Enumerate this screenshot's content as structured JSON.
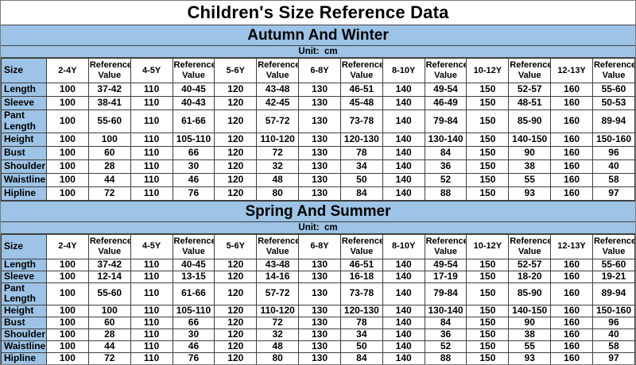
{
  "title": "Children's Size Reference Data",
  "unit_label": "Unit:  cm",
  "columns": [
    "Size",
    "2-4Y",
    "Reference Value",
    "4-5Y",
    "Reference Value",
    "5-6Y",
    "Reference Value",
    "6-8Y",
    "Reference Value",
    "8-10Y",
    "Reference Value",
    "10-12Y",
    "Reference Value",
    "12-13Y",
    "Reference Value"
  ],
  "chart_data": [
    {
      "type": "table",
      "heading": "Autumn And Winter",
      "unit": "cm",
      "rows": [
        {
          "label": "Length",
          "values": [
            "100",
            "37-42",
            "110",
            "40-45",
            "120",
            "43-48",
            "130",
            "46-51",
            "140",
            "49-54",
            "150",
            "52-57",
            "160",
            "55-60"
          ]
        },
        {
          "label": "Sleeve",
          "values": [
            "100",
            "38-41",
            "110",
            "40-43",
            "120",
            "42-45",
            "130",
            "45-48",
            "140",
            "46-49",
            "150",
            "48-51",
            "160",
            "50-53"
          ]
        },
        {
          "label": "Pant Length",
          "values": [
            "100",
            "55-60",
            "110",
            "61-66",
            "120",
            "57-72",
            "130",
            "73-78",
            "140",
            "79-84",
            "150",
            "85-90",
            "160",
            "89-94"
          ]
        },
        {
          "label": "Height",
          "values": [
            "100",
            "100",
            "110",
            "105-110",
            "120",
            "110-120",
            "130",
            "120-130",
            "140",
            "130-140",
            "150",
            "140-150",
            "160",
            "150-160"
          ]
        },
        {
          "label": "Bust",
          "values": [
            "100",
            "60",
            "110",
            "66",
            "120",
            "72",
            "130",
            "78",
            "140",
            "84",
            "150",
            "90",
            "160",
            "96"
          ]
        },
        {
          "label": "Shoulder",
          "values": [
            "100",
            "28",
            "110",
            "30",
            "120",
            "32",
            "130",
            "34",
            "140",
            "36",
            "150",
            "38",
            "160",
            "40"
          ]
        },
        {
          "label": "Waistline",
          "values": [
            "100",
            "44",
            "110",
            "46",
            "120",
            "48",
            "130",
            "50",
            "140",
            "52",
            "150",
            "55",
            "160",
            "58"
          ]
        },
        {
          "label": "Hipline",
          "values": [
            "100",
            "72",
            "110",
            "76",
            "120",
            "80",
            "130",
            "84",
            "140",
            "88",
            "150",
            "93",
            "160",
            "97"
          ]
        }
      ]
    },
    {
      "type": "table",
      "heading": "Spring And Summer",
      "unit": "cm",
      "rows": [
        {
          "label": "Length",
          "values": [
            "100",
            "37-42",
            "110",
            "40-45",
            "120",
            "43-48",
            "130",
            "46-51",
            "140",
            "49-54",
            "150",
            "52-57",
            "160",
            "55-60"
          ]
        },
        {
          "label": "Sleeve",
          "values": [
            "100",
            "12-14",
            "110",
            "13-15",
            "120",
            "14-16",
            "130",
            "16-18",
            "140",
            "17-19",
            "150",
            "18-20",
            "160",
            "19-21"
          ]
        },
        {
          "label": "Pant Length",
          "values": [
            "100",
            "55-60",
            "110",
            "61-66",
            "120",
            "57-72",
            "130",
            "73-78",
            "140",
            "79-84",
            "150",
            "85-90",
            "160",
            "89-94"
          ]
        },
        {
          "label": "Height",
          "values": [
            "100",
            "100",
            "110",
            "105-110",
            "120",
            "110-120",
            "130",
            "120-130",
            "140",
            "130-140",
            "150",
            "140-150",
            "160",
            "150-160"
          ]
        },
        {
          "label": "Bust",
          "values": [
            "100",
            "60",
            "110",
            "66",
            "120",
            "72",
            "130",
            "78",
            "140",
            "84",
            "150",
            "90",
            "160",
            "96"
          ]
        },
        {
          "label": "Shoulder",
          "values": [
            "100",
            "28",
            "110",
            "30",
            "120",
            "32",
            "130",
            "34",
            "140",
            "36",
            "150",
            "38",
            "160",
            "40"
          ]
        },
        {
          "label": "Waistline",
          "values": [
            "100",
            "44",
            "110",
            "46",
            "120",
            "48",
            "130",
            "50",
            "140",
            "52",
            "150",
            "55",
            "160",
            "58"
          ]
        },
        {
          "label": "Hipline",
          "values": [
            "100",
            "72",
            "110",
            "76",
            "120",
            "80",
            "130",
            "84",
            "140",
            "88",
            "150",
            "93",
            "160",
            "97"
          ]
        }
      ]
    }
  ],
  "colors": {
    "band_blue": "#9DC3E6",
    "border": "#3F3F3F",
    "text": "#000000",
    "background": "#FFFFFF"
  }
}
